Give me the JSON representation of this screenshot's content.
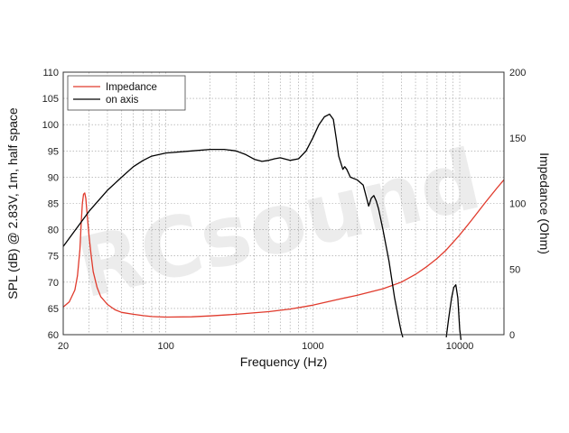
{
  "chart_data": {
    "type": "line",
    "xlabel": "Frequency (Hz)",
    "ylabel": "SPL (dB) @ 2.83V, 1m, half space",
    "y2label": "Impedance (Ohm)",
    "xscale": "log",
    "xlim": [
      20,
      20000
    ],
    "ylim": [
      60,
      110
    ],
    "y2lim": [
      0,
      200
    ],
    "x_ticks": [
      {
        "v": 20,
        "label": "20"
      },
      {
        "v": 100,
        "label": "100"
      },
      {
        "v": 1000,
        "label": "1000"
      },
      {
        "v": 10000,
        "label": "10000"
      }
    ],
    "y_ticks": [
      60,
      65,
      70,
      75,
      80,
      85,
      90,
      95,
      100,
      105,
      110
    ],
    "y2_ticks": [
      0,
      50,
      100,
      150,
      200
    ],
    "grid": true,
    "legend_position": "top-left",
    "watermark": "RCsound",
    "series": [
      {
        "name": "Impedance",
        "axis": "right",
        "color": "#e03a2c",
        "points": [
          [
            20,
            21
          ],
          [
            22,
            25
          ],
          [
            24,
            34
          ],
          [
            25,
            45
          ],
          [
            26,
            65
          ],
          [
            26.5,
            85
          ],
          [
            27,
            100
          ],
          [
            27.5,
            107
          ],
          [
            28,
            108
          ],
          [
            28.5,
            104
          ],
          [
            29,
            94
          ],
          [
            30,
            75
          ],
          [
            31,
            60
          ],
          [
            32,
            48
          ],
          [
            34,
            36
          ],
          [
            36,
            29
          ],
          [
            40,
            23
          ],
          [
            45,
            19
          ],
          [
            50,
            17
          ],
          [
            60,
            15.5
          ],
          [
            70,
            14.5
          ],
          [
            80,
            13.8
          ],
          [
            100,
            13.4
          ],
          [
            150,
            13.6
          ],
          [
            200,
            14.3
          ],
          [
            300,
            15.5
          ],
          [
            500,
            17.5
          ],
          [
            700,
            19.5
          ],
          [
            1000,
            22.5
          ],
          [
            1500,
            27
          ],
          [
            2000,
            30
          ],
          [
            3000,
            35
          ],
          [
            4000,
            40
          ],
          [
            5000,
            46
          ],
          [
            6000,
            52
          ],
          [
            7000,
            58
          ],
          [
            8000,
            64
          ],
          [
            10000,
            76
          ],
          [
            12000,
            87
          ],
          [
            15000,
            101
          ],
          [
            18000,
            112
          ],
          [
            20000,
            118
          ]
        ]
      },
      {
        "name": "on axis",
        "axis": "left",
        "color": "#000000",
        "points": [
          [
            20,
            76.8
          ],
          [
            25,
            80.5
          ],
          [
            30,
            83.5
          ],
          [
            40,
            87.5
          ],
          [
            50,
            90
          ],
          [
            60,
            92
          ],
          [
            70,
            93.2
          ],
          [
            80,
            94
          ],
          [
            100,
            94.6
          ],
          [
            150,
            95
          ],
          [
            200,
            95.3
          ],
          [
            250,
            95.3
          ],
          [
            300,
            95
          ],
          [
            350,
            94.3
          ],
          [
            400,
            93.4
          ],
          [
            450,
            93
          ],
          [
            500,
            93.2
          ],
          [
            550,
            93.5
          ],
          [
            600,
            93.7
          ],
          [
            700,
            93.2
          ],
          [
            800,
            93.5
          ],
          [
            900,
            95
          ],
          [
            1000,
            97.5
          ],
          [
            1100,
            100
          ],
          [
            1200,
            101.5
          ],
          [
            1300,
            102
          ],
          [
            1380,
            101
          ],
          [
            1450,
            97
          ],
          [
            1500,
            94
          ],
          [
            1600,
            91.5
          ],
          [
            1650,
            92
          ],
          [
            1700,
            91.5
          ],
          [
            1800,
            90
          ],
          [
            2000,
            89.5
          ],
          [
            2200,
            88.5
          ],
          [
            2350,
            85.5
          ],
          [
            2400,
            84.5
          ],
          [
            2500,
            86
          ],
          [
            2600,
            86.5
          ],
          [
            2700,
            85.5
          ],
          [
            2800,
            84
          ],
          [
            3000,
            80
          ],
          [
            3300,
            74
          ],
          [
            3600,
            67
          ],
          [
            3900,
            62
          ],
          [
            4000,
            60.5
          ],
          [
            4100,
            59.5
          ]
        ]
      },
      {
        "name": "",
        "axis": "left",
        "color": "#000000",
        "points": [
          [
            8100,
            59.5
          ],
          [
            8400,
            63
          ],
          [
            8800,
            67
          ],
          [
            9100,
            69
          ],
          [
            9400,
            69.5
          ],
          [
            9700,
            67
          ],
          [
            10000,
            61
          ],
          [
            10200,
            59
          ]
        ]
      }
    ]
  }
}
